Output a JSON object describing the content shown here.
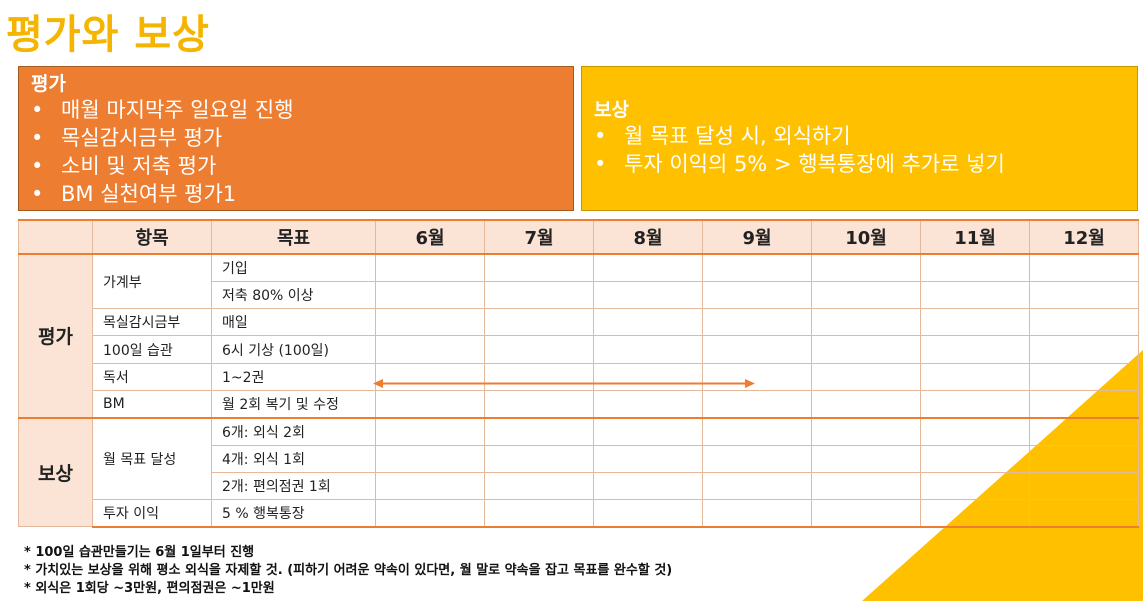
{
  "title": "평가와 보상",
  "evaluation_box": {
    "heading": "평가",
    "bullet": "•",
    "items": [
      "매월 마지막주 일요일 진행",
      "목실감시금부 평가",
      "소비 및 저축 평가",
      "BM 실천여부 평가1"
    ]
  },
  "reward_box": {
    "heading": "보상",
    "bullet": "•",
    "items": [
      "월 목표 달성 시, 외식하기",
      "투자 이익의 5% > 행복통장에 추가로 넣기"
    ]
  },
  "table": {
    "headers": [
      "",
      "항목",
      "목표",
      "6월",
      "7월",
      "8월",
      "9월",
      "10월",
      "11월",
      "12월"
    ],
    "groups": {
      "evaluation": "평가",
      "reward": "보상"
    },
    "rows": [
      {
        "item": "가계부",
        "goal": "기입"
      },
      {
        "item": "",
        "goal": "저축 80% 이상"
      },
      {
        "item": "목실감시금부",
        "goal": "매일"
      },
      {
        "item": "100일 습관",
        "goal": "6시 기상 (100일)"
      },
      {
        "item": "독서",
        "goal": "1~2권"
      },
      {
        "item": "BM",
        "goal": "월 2회 복기 및 수정"
      },
      {
        "item": "월 목표 달성",
        "goal": "6개: 외식 2회"
      },
      {
        "item": "",
        "goal": "4개: 외식 1회"
      },
      {
        "item": "",
        "goal": "2개: 편의점권 1회"
      },
      {
        "item": "투자 이익",
        "goal": "5 % 행복통장"
      }
    ]
  },
  "notes": [
    "* 100일 습관만들기는 6월 1일부터 진행",
    "* 가치있는 보상을 위해 평소 외식을 자제할 것. (피하기 어려운 약속이 있다면, 월 말로 약속을 잡고 목표를 완수할 것)",
    "* 외식은 1회당 ~3만원, 편의점권은 ~1만원"
  ],
  "colors": {
    "title": "#F5B400",
    "orange": "#ED7D31",
    "yellow": "#FFC000",
    "header_fill": "#FBE4D5"
  }
}
